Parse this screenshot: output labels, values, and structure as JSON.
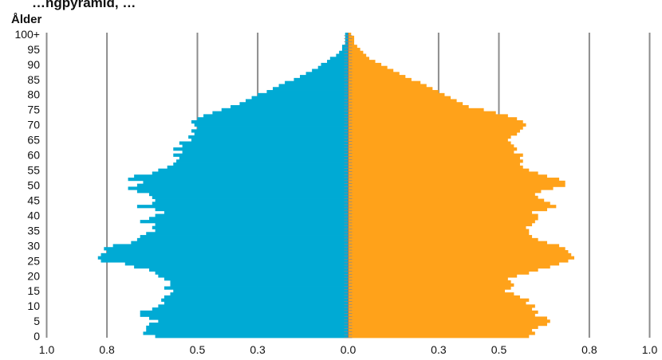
{
  "chart_data": {
    "type": "bar",
    "orientation": "horizontal-population-pyramid",
    "title": "…ngpyramid, …",
    "ylabel": "Ålder",
    "xlim": [
      -1.0,
      1.0
    ],
    "grid": true,
    "xticks": [
      {
        "value": -1.0,
        "label": "1.0"
      },
      {
        "value": -0.8,
        "label": "0.8"
      },
      {
        "value": -0.5,
        "label": "0.5"
      },
      {
        "value": -0.3,
        "label": "0.3"
      },
      {
        "value": 0.0,
        "label": "0.0"
      },
      {
        "value": 0.3,
        "label": "0.3"
      },
      {
        "value": 0.5,
        "label": "0.5"
      },
      {
        "value": 0.8,
        "label": "0.8"
      },
      {
        "value": 1.0,
        "label": "1.0"
      }
    ],
    "yticks": [
      {
        "value": 0,
        "label": "0"
      },
      {
        "value": 5,
        "label": "5"
      },
      {
        "value": 10,
        "label": "10"
      },
      {
        "value": 15,
        "label": "15"
      },
      {
        "value": 20,
        "label": "20"
      },
      {
        "value": 25,
        "label": "25"
      },
      {
        "value": 30,
        "label": "30"
      },
      {
        "value": 35,
        "label": "35"
      },
      {
        "value": 40,
        "label": "40"
      },
      {
        "value": 45,
        "label": "45"
      },
      {
        "value": 50,
        "label": "50"
      },
      {
        "value": 55,
        "label": "55"
      },
      {
        "value": 60,
        "label": "60"
      },
      {
        "value": 65,
        "label": "65"
      },
      {
        "value": 70,
        "label": "70"
      },
      {
        "value": 75,
        "label": "75"
      },
      {
        "value": 80,
        "label": "80"
      },
      {
        "value": 85,
        "label": "85"
      },
      {
        "value": 90,
        "label": "90"
      },
      {
        "value": 95,
        "label": "95"
      },
      {
        "value": 100,
        "label": "100+"
      }
    ],
    "ages": [
      0,
      1,
      2,
      3,
      4,
      5,
      6,
      7,
      8,
      9,
      10,
      11,
      12,
      13,
      14,
      15,
      16,
      17,
      18,
      19,
      20,
      21,
      22,
      23,
      24,
      25,
      26,
      27,
      28,
      29,
      30,
      31,
      32,
      33,
      34,
      35,
      36,
      37,
      38,
      39,
      40,
      41,
      42,
      43,
      44,
      45,
      46,
      47,
      48,
      49,
      50,
      51,
      52,
      53,
      54,
      55,
      56,
      57,
      58,
      59,
      60,
      61,
      62,
      63,
      64,
      65,
      66,
      67,
      68,
      69,
      70,
      71,
      72,
      73,
      74,
      75,
      76,
      77,
      78,
      79,
      80,
      81,
      82,
      83,
      84,
      85,
      86,
      87,
      88,
      89,
      90,
      91,
      92,
      93,
      94,
      95,
      96,
      97,
      98,
      99,
      100
    ],
    "series": [
      {
        "color": "#00AAD4",
        "values": [
          0.64,
          0.68,
          0.67,
          0.67,
          0.66,
          0.63,
          0.66,
          0.69,
          0.69,
          0.65,
          0.63,
          0.61,
          0.62,
          0.61,
          0.59,
          0.58,
          0.61,
          0.59,
          0.59,
          0.61,
          0.63,
          0.64,
          0.66,
          0.71,
          0.74,
          0.82,
          0.83,
          0.82,
          0.8,
          0.81,
          0.78,
          0.72,
          0.7,
          0.69,
          0.67,
          0.64,
          0.65,
          0.64,
          0.69,
          0.66,
          0.64,
          0.61,
          0.64,
          0.7,
          0.65,
          0.64,
          0.65,
          0.66,
          0.7,
          0.73,
          0.7,
          0.68,
          0.73,
          0.71,
          0.65,
          0.63,
          0.6,
          0.58,
          0.57,
          0.56,
          0.58,
          0.55,
          0.58,
          0.55,
          0.56,
          0.52,
          0.53,
          0.51,
          0.52,
          0.5,
          0.51,
          0.52,
          0.5,
          0.48,
          0.45,
          0.42,
          0.39,
          0.36,
          0.34,
          0.32,
          0.3,
          0.27,
          0.25,
          0.23,
          0.21,
          0.18,
          0.16,
          0.14,
          0.12,
          0.1,
          0.09,
          0.07,
          0.06,
          0.04,
          0.03,
          0.02,
          0.02,
          0.01,
          0.01,
          0.01,
          0.01
        ]
      },
      {
        "color": "#FFA21A",
        "values": [
          0.6,
          0.62,
          0.61,
          0.63,
          0.66,
          0.67,
          0.66,
          0.62,
          0.63,
          0.61,
          0.62,
          0.59,
          0.6,
          0.57,
          0.55,
          0.52,
          0.54,
          0.55,
          0.54,
          0.53,
          0.56,
          0.6,
          0.63,
          0.67,
          0.7,
          0.73,
          0.75,
          0.74,
          0.73,
          0.72,
          0.7,
          0.66,
          0.63,
          0.61,
          0.6,
          0.6,
          0.59,
          0.61,
          0.62,
          0.63,
          0.63,
          0.61,
          0.66,
          0.69,
          0.67,
          0.65,
          0.63,
          0.62,
          0.64,
          0.68,
          0.72,
          0.72,
          0.7,
          0.66,
          0.63,
          0.6,
          0.58,
          0.57,
          0.58,
          0.57,
          0.58,
          0.55,
          0.56,
          0.55,
          0.54,
          0.53,
          0.54,
          0.56,
          0.57,
          0.58,
          0.59,
          0.58,
          0.56,
          0.53,
          0.49,
          0.45,
          0.4,
          0.38,
          0.36,
          0.34,
          0.32,
          0.3,
          0.28,
          0.26,
          0.24,
          0.21,
          0.19,
          0.17,
          0.15,
          0.13,
          0.11,
          0.09,
          0.07,
          0.06,
          0.05,
          0.04,
          0.03,
          0.02,
          0.02,
          0.02,
          0.01
        ]
      }
    ]
  }
}
